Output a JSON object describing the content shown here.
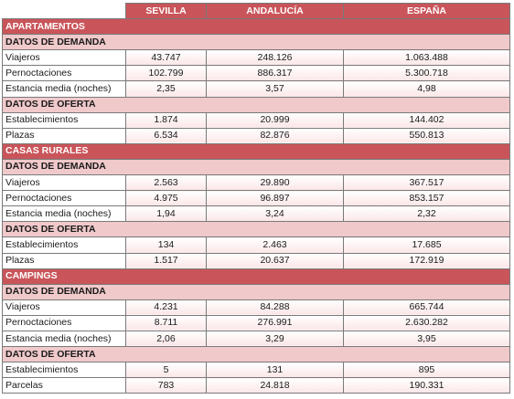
{
  "columns": [
    "",
    "SEVILLA",
    "ANDALUCÍA",
    "ESPAÑA"
  ],
  "sections": [
    {
      "title": "APARTAMENTOS",
      "groups": [
        {
          "title": "DATOS DE DEMANDA",
          "rows": [
            {
              "label": "Viajeros",
              "values": [
                "43.747",
                "248.126",
                "1.063.488"
              ]
            },
            {
              "label": "Pernoctaciones",
              "values": [
                "102.799",
                "886.317",
                "5.300.718"
              ]
            },
            {
              "label": "Estancia media (noches)",
              "values": [
                "2,35",
                "3,57",
                "4,98"
              ]
            }
          ]
        },
        {
          "title": "DATOS DE OFERTA",
          "rows": [
            {
              "label": "Establecimientos",
              "values": [
                "1.874",
                "20.999",
                "144.402"
              ]
            },
            {
              "label": "Plazas",
              "values": [
                "6.534",
                "82.876",
                "550.813"
              ]
            }
          ]
        }
      ]
    },
    {
      "title": "CASAS RURALES",
      "groups": [
        {
          "title": "DATOS DE DEMANDA",
          "rows": [
            {
              "label": "Viajeros",
              "values": [
                "2.563",
                "29.890",
                "367.517"
              ]
            },
            {
              "label": "Pernoctaciones",
              "values": [
                "4.975",
                "96.897",
                "853.157"
              ]
            },
            {
              "label": "Estancia media (noches)",
              "values": [
                "1,94",
                "3,24",
                "2,32"
              ]
            }
          ]
        },
        {
          "title": "DATOS DE OFERTA",
          "rows": [
            {
              "label": "Establecimientos",
              "values": [
                "134",
                "2.463",
                "17.685"
              ]
            },
            {
              "label": "Plazas",
              "values": [
                "1.517",
                "20.637",
                "172.919"
              ]
            }
          ]
        }
      ]
    },
    {
      "title": "CAMPINGS",
      "groups": [
        {
          "title": "DATOS DE DEMANDA",
          "rows": [
            {
              "label": "Viajeros",
              "values": [
                "4.231",
                "84.288",
                "665.744"
              ]
            },
            {
              "label": "Pernoctaciones",
              "values": [
                "8.711",
                "276.991",
                "2.630.282"
              ]
            },
            {
              "label": "Estancia media (noches)",
              "values": [
                "2,06",
                "3,29",
                "3,95"
              ]
            }
          ]
        },
        {
          "title": "DATOS DE OFERTA",
          "rows": [
            {
              "label": "Establecimientos",
              "values": [
                "5",
                "131",
                "895"
              ]
            },
            {
              "label": "Parcelas",
              "values": [
                "783",
                "24.818",
                "190.331"
              ]
            }
          ]
        }
      ]
    }
  ]
}
